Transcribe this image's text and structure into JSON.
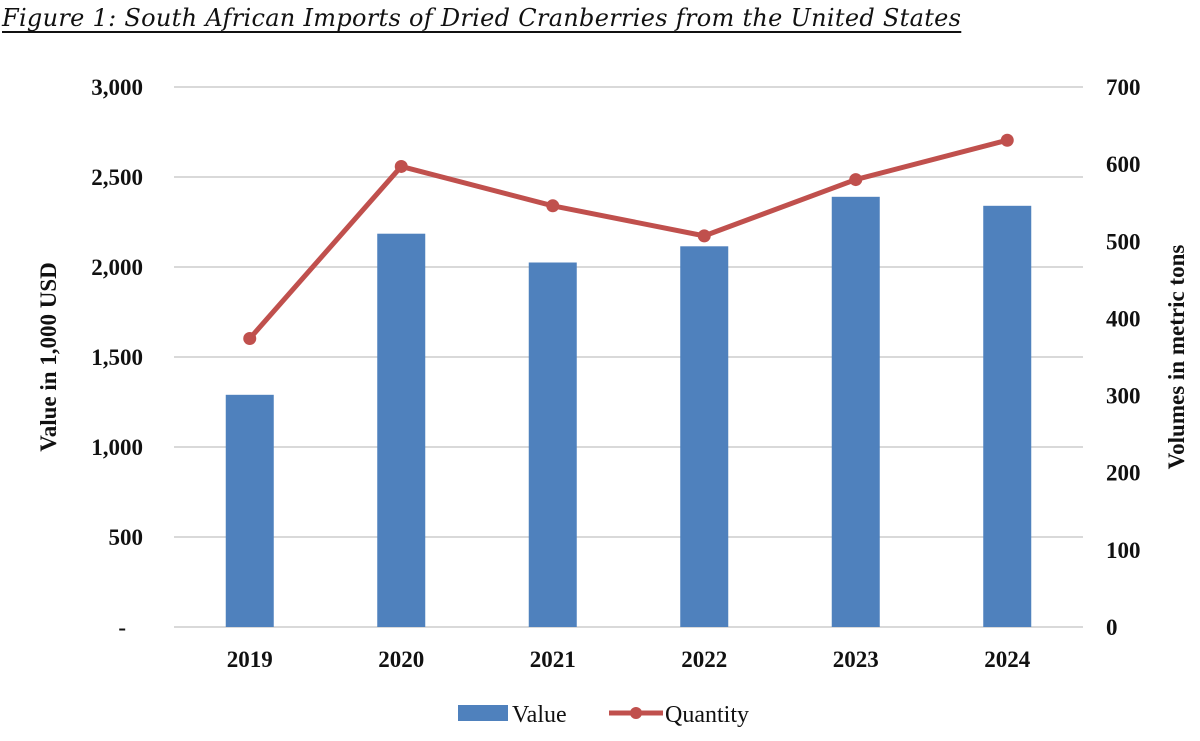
{
  "figure": {
    "title": "Figure 1: South African Imports of Dried Cranberries from the United States"
  },
  "colors": {
    "bar": "#4F81BD",
    "line": "#C0504D",
    "grid": "#D9D9D9"
  },
  "chart_data": {
    "type": "bar+line",
    "title": "Figure 1: South African Imports of Dried Cranberries from the United States",
    "categories": [
      "2019",
      "2020",
      "2021",
      "2022",
      "2023",
      "2024"
    ],
    "series": [
      {
        "name": "Value",
        "type": "bar",
        "axis": "left",
        "values": [
          1290,
          2185,
          2025,
          2115,
          2390,
          2340
        ]
      },
      {
        "name": "Quantity",
        "type": "line",
        "axis": "right",
        "values": [
          374,
          597,
          546,
          507,
          580,
          631
        ]
      }
    ],
    "ylabel": "Value in 1,000 USD",
    "y2label": "Volumes in metric tons",
    "ylim": [
      0,
      3000
    ],
    "y2lim": [
      0,
      700
    ],
    "yticks": [
      0,
      500,
      1000,
      1500,
      2000,
      2500,
      3000
    ],
    "ytick_labels": [
      "-",
      "500",
      "1,000",
      "1,500",
      "2,000",
      "2,500",
      "3,000"
    ],
    "y2ticks": [
      0,
      100,
      200,
      300,
      400,
      500,
      600,
      700
    ],
    "y2tick_labels": [
      "0",
      "100",
      "200",
      "300",
      "400",
      "500",
      "600",
      "700"
    ],
    "grid": true,
    "legend": {
      "placement": "bottom-center",
      "entries": [
        "Value",
        "Quantity"
      ]
    }
  }
}
